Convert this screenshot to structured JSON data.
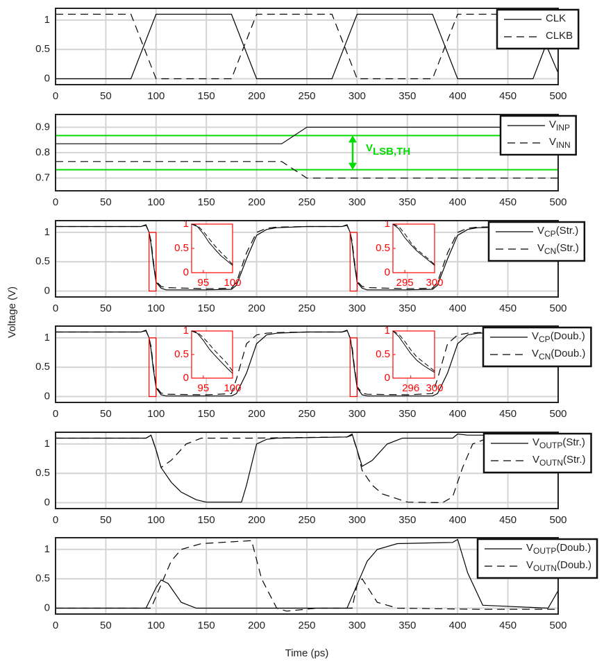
{
  "chart_data": [
    {
      "type": "line",
      "ylabel": "Voltage (V)",
      "xlim": [
        0,
        500
      ],
      "xticks": [
        0,
        50,
        100,
        150,
        200,
        250,
        300,
        350,
        400,
        450,
        500
      ],
      "ylim": [
        -0.1,
        1.2
      ],
      "yticks": [
        0,
        0.5,
        1
      ],
      "grid": true,
      "series": [
        {
          "name": "CLK",
          "color": "#000000",
          "linestyle": "solid",
          "x": [
            0,
            75,
            100,
            175,
            200,
            275,
            300,
            375,
            400,
            475,
            488,
            500
          ],
          "values": [
            0,
            0,
            1.1,
            1.1,
            0,
            0,
            1.1,
            1.1,
            0,
            0,
            0.58,
            0.1
          ]
        },
        {
          "name": "CLKB",
          "color": "#000000",
          "linestyle": "dashed",
          "x": [
            0,
            75,
            100,
            175,
            200,
            275,
            300,
            375,
            400,
            475,
            500
          ],
          "values": [
            1.1,
            1.1,
            0,
            0,
            1.1,
            1.1,
            0,
            0,
            1.1,
            1.1,
            0.55
          ]
        }
      ]
    },
    {
      "type": "line",
      "xlim": [
        0,
        500
      ],
      "xticks": [
        0,
        50,
        100,
        150,
        200,
        250,
        300,
        350,
        400,
        450,
        500
      ],
      "ylim": [
        0.65,
        0.95
      ],
      "yticks": [
        0.7,
        0.8,
        0.9
      ],
      "grid": true,
      "hlines": [
        {
          "value": 0.867,
          "color": "#00dd00"
        },
        {
          "value": 0.733,
          "color": "#00dd00"
        }
      ],
      "annotation": [
        "V",
        "LSB,TH"
      ],
      "annotation_color": "#00dd00",
      "series": [
        {
          "name": [
            "V",
            "INP"
          ],
          "color": "#000000",
          "linestyle": "solid",
          "x": [
            0,
            225,
            250,
            500
          ],
          "values": [
            0.835,
            0.835,
            0.9,
            0.9
          ]
        },
        {
          "name": [
            "V",
            "INN"
          ],
          "color": "#000000",
          "linestyle": "dashed",
          "x": [
            0,
            225,
            250,
            500
          ],
          "values": [
            0.765,
            0.765,
            0.7,
            0.7
          ]
        }
      ]
    },
    {
      "type": "line",
      "xlim": [
        0,
        500
      ],
      "xticks": [
        0,
        50,
        100,
        150,
        200,
        250,
        300,
        350,
        400,
        450,
        500
      ],
      "ylim": [
        -0.1,
        1.2
      ],
      "yticks": [
        0,
        0.5,
        1
      ],
      "grid": true,
      "series": [
        {
          "name": [
            "V",
            "CP",
            "(Str.)"
          ],
          "color": "#000000",
          "linestyle": "solid",
          "x": [
            0,
            85,
            90,
            93,
            95,
            97,
            100,
            105,
            110,
            150,
            175,
            180,
            190,
            200,
            210,
            220,
            250,
            285,
            290,
            293,
            295,
            297,
            300,
            305,
            310,
            350,
            375,
            380,
            390,
            400,
            410,
            420,
            480,
            495,
            500
          ],
          "values": [
            1.1,
            1.1,
            1.13,
            1.0,
            0.8,
            0.5,
            0.15,
            0.05,
            0.02,
            0.02,
            0.03,
            0.1,
            0.55,
            0.95,
            1.05,
            1.08,
            1.1,
            1.1,
            1.13,
            1.0,
            0.8,
            0.5,
            0.15,
            0.05,
            0.02,
            0.02,
            0.03,
            0.1,
            0.55,
            0.95,
            1.05,
            1.08,
            1.1,
            1.1,
            0.9
          ]
        },
        {
          "name": [
            "V",
            "CN",
            "(Str.)"
          ],
          "color": "#000000",
          "linestyle": "dashed",
          "x": [
            0,
            85,
            90,
            93,
            95,
            97,
            100,
            105,
            110,
            150,
            175,
            180,
            190,
            200,
            210,
            220,
            250,
            285,
            290,
            293,
            295,
            297,
            300,
            305,
            310,
            350,
            375,
            380,
            390,
            400,
            410,
            420,
            480,
            495,
            500
          ],
          "values": [
            1.1,
            1.1,
            1.12,
            1.0,
            0.85,
            0.55,
            0.17,
            0.08,
            0.06,
            0.04,
            0.05,
            0.15,
            0.65,
            1.0,
            1.07,
            1.09,
            1.1,
            1.1,
            1.12,
            1.0,
            0.85,
            0.55,
            0.17,
            0.08,
            0.06,
            0.04,
            0.05,
            0.15,
            0.65,
            1.0,
            1.07,
            1.09,
            1.1,
            1.1,
            0.95
          ]
        }
      ],
      "insets": [
        {
          "color": "#ff0000",
          "xlim": [
            93,
            100
          ],
          "xticks": [
            95,
            100
          ],
          "ylim": [
            0,
            1
          ],
          "yticks": [
            0,
            0.5,
            1
          ],
          "series": [
            {
              "linestyle": "solid",
              "x": [
                93,
                94,
                95,
                96,
                97,
                98,
                99,
                100
              ],
              "values": [
                1.0,
                0.95,
                0.8,
                0.62,
                0.48,
                0.35,
                0.25,
                0.15
              ]
            },
            {
              "linestyle": "dashed",
              "x": [
                93,
                94,
                95,
                96,
                97,
                98,
                99,
                100
              ],
              "values": [
                1.0,
                0.97,
                0.85,
                0.7,
                0.55,
                0.42,
                0.3,
                0.17
              ]
            }
          ]
        },
        {
          "color": "#ff0000",
          "xlim": [
            293,
            300
          ],
          "xticks": [
            295,
            300
          ],
          "ylim": [
            0,
            1
          ],
          "yticks": [
            0,
            0.5,
            1
          ],
          "series": [
            {
              "linestyle": "solid",
              "x": [
                293,
                294,
                295,
                296,
                297,
                298,
                299,
                300
              ],
              "values": [
                1.0,
                0.9,
                0.72,
                0.58,
                0.45,
                0.35,
                0.25,
                0.15
              ]
            },
            {
              "linestyle": "dashed",
              "x": [
                293,
                294,
                295,
                296,
                297,
                298,
                299,
                300
              ],
              "values": [
                1.0,
                0.95,
                0.8,
                0.62,
                0.48,
                0.38,
                0.28,
                0.17
              ]
            }
          ]
        }
      ]
    },
    {
      "type": "line",
      "xlim": [
        0,
        500
      ],
      "xticks": [
        0,
        50,
        100,
        150,
        200,
        250,
        300,
        350,
        400,
        450,
        500
      ],
      "ylim": [
        -0.1,
        1.2
      ],
      "yticks": [
        0,
        0.5,
        1
      ],
      "grid": true,
      "series": [
        {
          "name": [
            "V",
            "CP",
            "(Doub.)"
          ],
          "color": "#000000",
          "linestyle": "solid",
          "x": [
            0,
            85,
            90,
            93,
            95,
            97,
            100,
            105,
            110,
            150,
            175,
            180,
            190,
            200,
            210,
            220,
            250,
            285,
            290,
            293,
            295,
            297,
            300,
            305,
            310,
            350,
            375,
            380,
            390,
            400,
            410,
            420,
            480,
            495,
            500
          ],
          "values": [
            1.1,
            1.1,
            1.13,
            1.0,
            0.8,
            0.5,
            0.15,
            0.03,
            0.01,
            0.01,
            0.01,
            0.05,
            0.4,
            0.9,
            1.05,
            1.08,
            1.1,
            1.1,
            1.13,
            1.0,
            0.8,
            0.5,
            0.15,
            0.03,
            0.01,
            0.01,
            0.01,
            0.05,
            0.4,
            0.9,
            1.05,
            1.08,
            1.1,
            1.1,
            1.1
          ]
        },
        {
          "name": [
            "V",
            "CN",
            "(Doub.)"
          ],
          "color": "#000000",
          "linestyle": "dashed",
          "x": [
            0,
            85,
            90,
            93,
            95,
            97,
            100,
            105,
            110,
            150,
            175,
            180,
            190,
            200,
            210,
            220,
            250,
            285,
            290,
            293,
            295,
            297,
            300,
            305,
            310,
            350,
            375,
            380,
            390,
            400,
            410,
            420,
            480,
            495,
            500
          ],
          "values": [
            1.1,
            1.1,
            1.12,
            1.0,
            0.85,
            0.55,
            0.17,
            0.06,
            0.04,
            0.03,
            0.05,
            0.3,
            0.9,
            1.05,
            1.08,
            1.09,
            1.1,
            1.1,
            1.12,
            1.0,
            0.85,
            0.55,
            0.17,
            0.06,
            0.04,
            0.03,
            0.05,
            0.3,
            0.9,
            1.05,
            1.08,
            1.09,
            1.1,
            1.1,
            1.1
          ]
        }
      ],
      "insets": [
        {
          "color": "#ff0000",
          "xlim": [
            93,
            100
          ],
          "xticks": [
            95,
            100
          ],
          "ylim": [
            0,
            1
          ],
          "yticks": [
            0,
            0.5,
            1
          ],
          "series": [
            {
              "linestyle": "solid",
              "x": [
                93,
                94,
                95,
                96,
                97,
                98,
                99,
                100
              ],
              "values": [
                1.0,
                0.95,
                0.8,
                0.62,
                0.48,
                0.35,
                0.22,
                0.1
              ]
            },
            {
              "linestyle": "dashed",
              "x": [
                93,
                94,
                95,
                96,
                97,
                98,
                99,
                100
              ],
              "values": [
                1.0,
                0.97,
                0.86,
                0.72,
                0.58,
                0.45,
                0.32,
                0.15
              ]
            }
          ]
        },
        {
          "color": "#ff0000",
          "xlim": [
            293,
            300
          ],
          "xticks": [
            296,
            300
          ],
          "ylim": [
            0,
            1
          ],
          "yticks": [
            0,
            0.5,
            1
          ],
          "series": [
            {
              "linestyle": "solid",
              "x": [
                293,
                294,
                295,
                296,
                297,
                298,
                299,
                300
              ],
              "values": [
                1.0,
                0.88,
                0.7,
                0.52,
                0.38,
                0.28,
                0.2,
                0.12
              ]
            },
            {
              "linestyle": "dashed",
              "x": [
                293,
                294,
                295,
                296,
                297,
                298,
                299,
                300
              ],
              "values": [
                1.0,
                0.93,
                0.78,
                0.6,
                0.45,
                0.35,
                0.25,
                0.15
              ]
            }
          ]
        }
      ]
    },
    {
      "type": "line",
      "xlim": [
        0,
        500
      ],
      "xticks": [
        0,
        50,
        100,
        150,
        200,
        250,
        300,
        350,
        400,
        450,
        500
      ],
      "ylim": [
        -0.1,
        1.2
      ],
      "yticks": [
        0,
        0.5,
        1
      ],
      "grid": true,
      "series": [
        {
          "name": [
            "V",
            "OUTP",
            "(Str.)"
          ],
          "color": "#000000",
          "linestyle": "solid",
          "x": [
            0,
            90,
            95,
            100,
            105,
            115,
            125,
            140,
            150,
            185,
            190,
            200,
            210,
            220,
            290,
            295,
            300,
            305,
            315,
            330,
            345,
            395,
            400,
            410,
            500
          ],
          "values": [
            1.1,
            1.1,
            1.15,
            0.9,
            0.6,
            0.35,
            0.18,
            0.05,
            0.01,
            0.01,
            0.3,
            1.0,
            1.08,
            1.1,
            1.12,
            1.17,
            0.9,
            0.62,
            0.72,
            1.0,
            1.1,
            1.1,
            1.17,
            1.15,
            1.15
          ]
        },
        {
          "name": [
            "V",
            "OUTN",
            "(Str.)"
          ],
          "color": "#000000",
          "linestyle": "dashed",
          "x": [
            0,
            90,
            95,
            100,
            105,
            115,
            130,
            145,
            195,
            290,
            295,
            300,
            305,
            315,
            325,
            350,
            385,
            395,
            405,
            415,
            430,
            500
          ],
          "values": [
            1.1,
            1.1,
            1.15,
            0.9,
            0.6,
            0.72,
            1.0,
            1.1,
            1.1,
            1.12,
            1.15,
            0.9,
            0.55,
            0.3,
            0.15,
            0.01,
            0.0,
            0.1,
            0.6,
            1.0,
            1.1,
            1.1
          ]
        }
      ]
    },
    {
      "type": "line",
      "xlabel": "Time (ps)",
      "xlim": [
        0,
        500
      ],
      "xticks": [
        0,
        50,
        100,
        150,
        200,
        250,
        300,
        350,
        400,
        450,
        500
      ],
      "ylim": [
        -0.1,
        1.2
      ],
      "yticks": [
        0,
        0.5,
        1
      ],
      "grid": true,
      "series": [
        {
          "name": [
            "V",
            "OUTP",
            "(Doub.)"
          ],
          "color": "#000000",
          "linestyle": "solid",
          "x": [
            0,
            90,
            100,
            105,
            112,
            125,
            140,
            290,
            300,
            310,
            320,
            340,
            395,
            400,
            410,
            425,
            490,
            500
          ],
          "values": [
            0,
            0,
            0.35,
            0.48,
            0.42,
            0.1,
            0.0,
            0.0,
            0.4,
            0.8,
            1.0,
            1.1,
            1.12,
            1.17,
            0.6,
            0.05,
            0.0,
            0.3
          ]
        },
        {
          "name": [
            "V",
            "OUTN",
            "(Doub.)"
          ],
          "color": "#000000",
          "linestyle": "dashed",
          "x": [
            0,
            95,
            105,
            115,
            125,
            145,
            195,
            205,
            220,
            230,
            260,
            295,
            300,
            305,
            320,
            340,
            420,
            500
          ],
          "values": [
            0,
            0,
            0.4,
            0.8,
            1.0,
            1.1,
            1.15,
            0.5,
            0.0,
            -0.05,
            0.0,
            0.0,
            0.4,
            0.5,
            0.1,
            0.0,
            -0.02,
            -0.02
          ]
        }
      ]
    }
  ]
}
